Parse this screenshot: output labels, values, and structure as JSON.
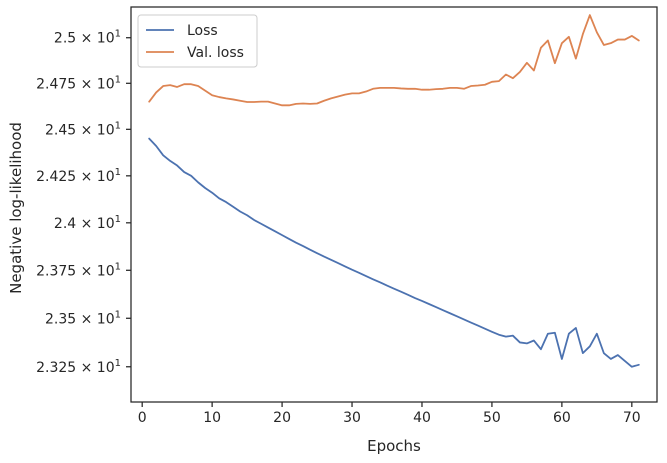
{
  "chart_data": {
    "type": "line",
    "title": "",
    "xlabel": "Epochs",
    "ylabel": "Negative log-likelihood",
    "xlim": [
      -1.6,
      73.6
    ],
    "ylim": [
      23.07,
      25.17
    ],
    "x_ticks": [
      0,
      10,
      20,
      30,
      40,
      50,
      60,
      70
    ],
    "y_ticks": [
      {
        "value": 23.25,
        "mantissa": "2.325",
        "exponent": "1"
      },
      {
        "value": 23.5,
        "mantissa": "2.35",
        "exponent": "1"
      },
      {
        "value": 23.75,
        "mantissa": "2.375",
        "exponent": "1"
      },
      {
        "value": 24.0,
        "mantissa": "2.4",
        "exponent": "1"
      },
      {
        "value": 24.25,
        "mantissa": "2.425",
        "exponent": "1"
      },
      {
        "value": 24.5,
        "mantissa": "2.45",
        "exponent": "1"
      },
      {
        "value": 24.75,
        "mantissa": "2.475",
        "exponent": "1"
      },
      {
        "value": 25.0,
        "mantissa": "2.5",
        "exponent": "1"
      }
    ],
    "y_scale": "log",
    "grid": false,
    "legend_position": "top-left",
    "series": [
      {
        "name": "Loss",
        "color": "#4c72b0",
        "x": [
          1,
          2,
          3,
          4,
          5,
          6,
          7,
          8,
          9,
          10,
          11,
          12,
          13,
          14,
          15,
          16,
          17,
          18,
          19,
          20,
          21,
          22,
          23,
          24,
          25,
          26,
          27,
          28,
          29,
          30,
          31,
          32,
          33,
          34,
          35,
          36,
          37,
          38,
          39,
          40,
          41,
          42,
          43,
          44,
          45,
          46,
          47,
          48,
          49,
          50,
          51,
          52,
          53,
          54,
          55,
          56,
          57,
          58,
          59,
          60,
          61,
          62,
          63,
          64,
          65,
          66,
          67,
          68,
          69,
          70,
          71
        ],
        "values": [
          24.45,
          24.41,
          24.36,
          24.33,
          24.305,
          24.27,
          24.25,
          24.215,
          24.185,
          24.16,
          24.13,
          24.11,
          24.085,
          24.06,
          24.04,
          24.015,
          23.995,
          23.975,
          23.955,
          23.935,
          23.915,
          23.895,
          23.877,
          23.858,
          23.84,
          23.822,
          23.805,
          23.788,
          23.77,
          23.753,
          23.737,
          23.72,
          23.703,
          23.687,
          23.67,
          23.654,
          23.638,
          23.622,
          23.605,
          23.59,
          23.574,
          23.558,
          23.542,
          23.526,
          23.51,
          23.494,
          23.478,
          23.462,
          23.446,
          23.43,
          23.415,
          23.405,
          23.41,
          23.375,
          23.37,
          23.385,
          23.34,
          23.42,
          23.425,
          23.29,
          23.42,
          23.45,
          23.32,
          23.355,
          23.42,
          23.32,
          23.29,
          23.31,
          23.28,
          23.25,
          23.26
        ]
      },
      {
        "name": "Val. loss",
        "color": "#dd8452",
        "x": [
          1,
          2,
          3,
          4,
          5,
          6,
          7,
          8,
          9,
          10,
          11,
          12,
          13,
          14,
          15,
          16,
          17,
          18,
          19,
          20,
          21,
          22,
          23,
          24,
          25,
          26,
          27,
          28,
          29,
          30,
          31,
          32,
          33,
          34,
          35,
          36,
          37,
          38,
          39,
          40,
          41,
          42,
          43,
          44,
          45,
          46,
          47,
          48,
          49,
          50,
          51,
          52,
          53,
          54,
          55,
          56,
          57,
          58,
          59,
          60,
          61,
          62,
          63,
          64,
          65,
          66,
          67,
          68,
          69,
          70,
          71
        ],
        "values": [
          24.65,
          24.7,
          24.735,
          24.74,
          24.73,
          24.745,
          24.745,
          24.735,
          24.71,
          24.685,
          24.675,
          24.668,
          24.662,
          24.655,
          24.648,
          24.648,
          24.65,
          24.65,
          24.64,
          24.63,
          24.63,
          24.638,
          24.64,
          24.638,
          24.64,
          24.655,
          24.668,
          24.678,
          24.688,
          24.695,
          24.695,
          24.705,
          24.72,
          24.725,
          24.725,
          24.725,
          24.722,
          24.72,
          24.72,
          24.715,
          24.715,
          24.718,
          24.72,
          24.725,
          24.725,
          24.72,
          24.735,
          24.738,
          24.742,
          24.758,
          24.762,
          24.798,
          24.778,
          24.812,
          24.862,
          24.82,
          24.945,
          24.985,
          24.86,
          24.97,
          25.005,
          24.885,
          25.02,
          25.125,
          25.03,
          24.96,
          24.97,
          24.99,
          24.99,
          25.01,
          24.985
        ]
      }
    ]
  }
}
